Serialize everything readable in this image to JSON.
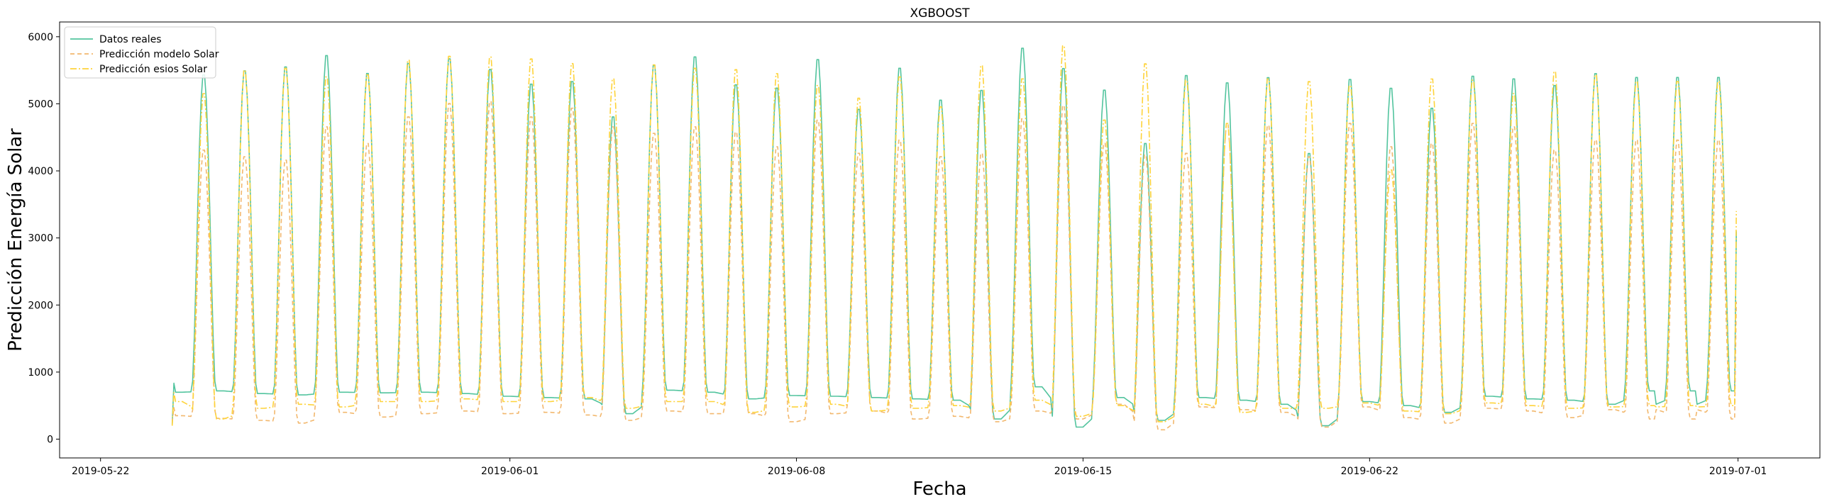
{
  "chart_data": {
    "type": "line",
    "title": "XGBOOST",
    "xlabel": "Fecha",
    "ylabel": "Predicción Energía Solar",
    "x_range": [
      "2019-05-21",
      "2019-07-03"
    ],
    "data_start": "2019-05-23T18:00",
    "data_end": "2019-06-30T23:00",
    "ylim": [
      -280,
      6220
    ],
    "x_ticks": [
      "2019-05-22",
      "2019-06-01",
      "2019-06-08",
      "2019-06-15",
      "2019-06-22",
      "2019-07-01"
    ],
    "y_ticks": [
      0,
      1000,
      2000,
      3000,
      4000,
      5000,
      6000
    ],
    "grid": false,
    "legend_position": "top-left",
    "series": [
      {
        "name": "Datos reales",
        "color": "#52c49e",
        "style": "solid",
        "start_value": 220,
        "end_value": 3100,
        "daily_peak": [
          5150,
          5480,
          5540,
          5600,
          5770,
          5500,
          5650,
          5720,
          5560,
          5340,
          5380,
          4850,
          5620,
          5750,
          5330,
          5280,
          5710,
          4960,
          5580,
          5100,
          5250,
          5880,
          5580,
          5250,
          4450,
          5470,
          5360,
          5440,
          4300,
          5410,
          5280,
          4980,
          5460,
          5420,
          5320,
          5500,
          5440
        ],
        "daily_night": [
          700,
          720,
          680,
          660,
          700,
          690,
          700,
          680,
          640,
          620,
          600,
          380,
          730,
          700,
          600,
          650,
          640,
          620,
          600,
          580,
          300,
          780,
          180,
          620,
          280,
          620,
          580,
          520,
          200,
          560,
          500,
          400,
          640,
          600,
          580,
          520,
          720
        ]
      },
      {
        "name": "Predicción modelo Solar",
        "color": "#f2b86e",
        "style": "dashed",
        "start_value": 250,
        "end_value": 2050,
        "daily_peak": [
          4300,
          4350,
          4250,
          4200,
          4700,
          4450,
          4850,
          5050,
          5080,
          4850,
          4980,
          4700,
          4600,
          4700,
          4620,
          4400,
          4800,
          4300,
          4500,
          4250,
          4300,
          4820,
          5020,
          4450,
          4280,
          4300,
          4750,
          4720,
          4250,
          4750,
          4400,
          4450,
          4750,
          4700,
          4350,
          4500,
          4500
        ],
        "daily_night": [
          350,
          310,
          280,
          240,
          400,
          330,
          380,
          420,
          380,
          400,
          360,
          280,
          420,
          380,
          380,
          260,
          380,
          420,
          300,
          340,
          260,
          420,
          300,
          520,
          140,
          480,
          440,
          400,
          180,
          480,
          320,
          240,
          460,
          420,
          320,
          440,
          300
        ]
      },
      {
        "name": "Predicción esios Solar",
        "color": "#fed33a",
        "style": "dashdot",
        "start_value": 200,
        "end_value": 3400,
        "daily_peak": [
          5000,
          5200,
          5550,
          5580,
          5450,
          5480,
          5700,
          5760,
          5750,
          5720,
          5650,
          5420,
          5630,
          5580,
          5560,
          5500,
          5320,
          5130,
          5450,
          5000,
          5620,
          5420,
          5920,
          4800,
          5650,
          5400,
          4750,
          5420,
          5380,
          5320,
          4050,
          5420,
          5400,
          5200,
          5530,
          5480,
          5380
        ],
        "daily_night": [
          560,
          300,
          460,
          520,
          480,
          560,
          560,
          600,
          560,
          560,
          620,
          460,
          560,
          560,
          400,
          480,
          520,
          420,
          460,
          500,
          420,
          580,
          340,
          500,
          260,
          520,
          400,
          460,
          460,
          540,
          420,
          380,
          540,
          500,
          460,
          480,
          500
        ]
      }
    ]
  }
}
